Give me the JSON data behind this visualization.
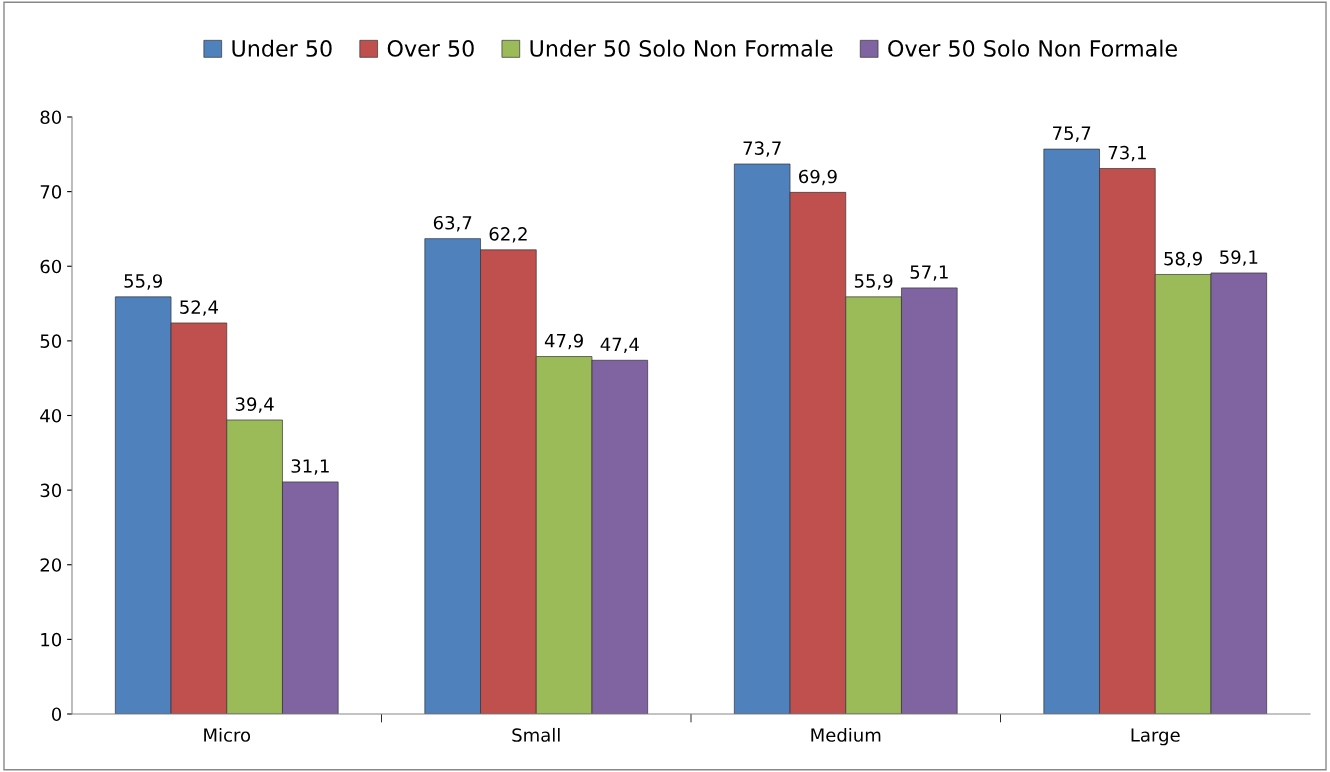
{
  "chart_data": {
    "type": "bar",
    "categories": [
      "Micro",
      "Small",
      "Medium",
      "Large"
    ],
    "series": [
      {
        "name": "Under 50",
        "color": "#4f81bd",
        "values": [
          55.9,
          63.7,
          73.7,
          75.7
        ],
        "value_labels": [
          "55,9",
          "63,7",
          "73,7",
          "75,7"
        ]
      },
      {
        "name": "Over 50",
        "color": "#c0504d",
        "values": [
          52.4,
          62.2,
          69.9,
          73.1
        ],
        "value_labels": [
          "52,4",
          "62,2",
          "69,9",
          "73,1"
        ]
      },
      {
        "name": "Under 50 Solo Non Formale",
        "color": "#9bbb59",
        "values": [
          39.4,
          47.9,
          55.9,
          58.9
        ],
        "value_labels": [
          "39,4",
          "47,9",
          "55,9",
          "58,9"
        ]
      },
      {
        "name": "Over 50 Solo Non Formale",
        "color": "#8064a2",
        "values": [
          31.1,
          47.4,
          57.1,
          59.1
        ],
        "value_labels": [
          "31,1",
          "47,4",
          "57,1",
          "59,1"
        ]
      }
    ],
    "ylim": [
      0,
      80
    ],
    "yticks": [
      0,
      10,
      20,
      30,
      40,
      50,
      60,
      70,
      80
    ],
    "legend": "top",
    "grid": false
  }
}
